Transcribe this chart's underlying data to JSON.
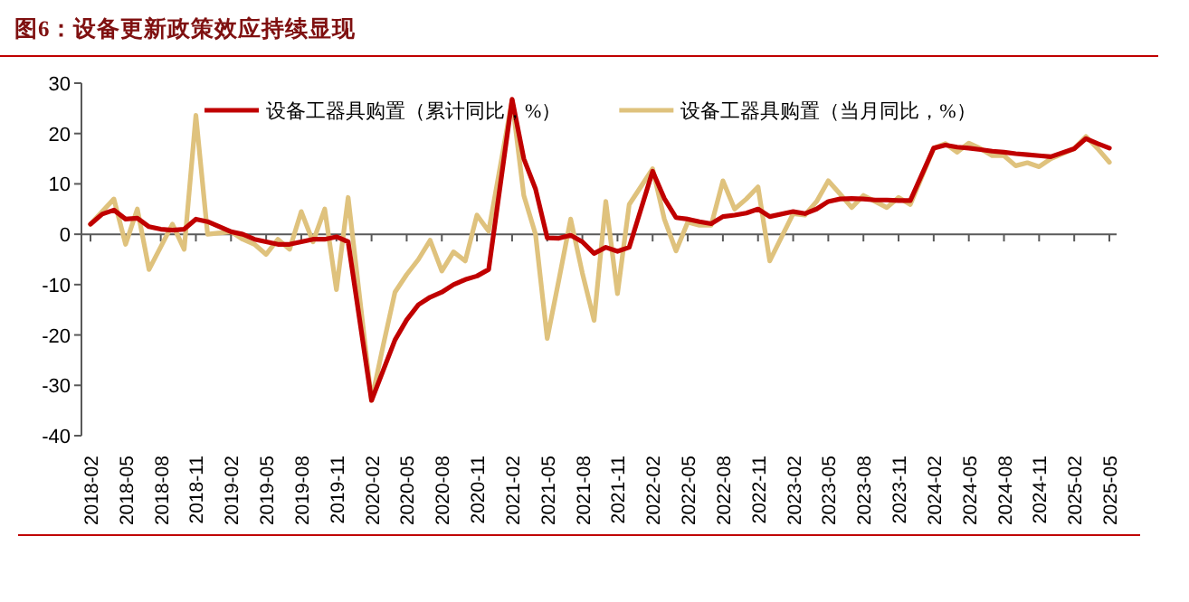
{
  "chart_data": {
    "type": "line",
    "title": "图6：设备更新政策效应持续显现",
    "x": [
      "2018-02",
      "2018-03",
      "2018-04",
      "2018-05",
      "2018-06",
      "2018-07",
      "2018-08",
      "2018-09",
      "2018-10",
      "2018-11",
      "2018-12",
      "2019-02",
      "2019-03",
      "2019-04",
      "2019-05",
      "2019-06",
      "2019-07",
      "2019-08",
      "2019-09",
      "2019-10",
      "2019-11",
      "2019-12",
      "2020-02",
      "2020-03",
      "2020-04",
      "2020-05",
      "2020-06",
      "2020-07",
      "2020-08",
      "2020-09",
      "2020-10",
      "2020-11",
      "2020-12",
      "2021-02",
      "2021-03",
      "2021-04",
      "2021-05",
      "2021-06",
      "2021-07",
      "2021-08",
      "2021-09",
      "2021-10",
      "2021-11",
      "2021-12",
      "2022-02",
      "2022-03",
      "2022-04",
      "2022-05",
      "2022-06",
      "2022-07",
      "2022-08",
      "2022-09",
      "2022-10",
      "2022-11",
      "2022-12",
      "2023-02",
      "2023-03",
      "2023-04",
      "2023-05",
      "2023-06",
      "2023-07",
      "2023-08",
      "2023-09",
      "2023-10",
      "2023-11",
      "2023-12",
      "2024-02",
      "2024-03",
      "2024-04",
      "2024-05",
      "2024-06",
      "2024-07",
      "2024-08",
      "2024-09",
      "2024-10",
      "2024-11",
      "2024-12",
      "2025-02",
      "2025-03",
      "2025-04",
      "2025-05"
    ],
    "series": [
      {
        "name": "设备工器具购置（累计同比，%）",
        "color": "#c00000",
        "values": [
          2,
          4,
          4.8,
          3,
          3.2,
          1.5,
          1,
          0.8,
          1,
          3,
          2.5,
          0.5,
          0,
          -1,
          -1.5,
          -2,
          -2,
          -1.5,
          -1,
          -1,
          -0.5,
          -1.5,
          -33,
          -27,
          -21,
          -17,
          -14,
          -12.5,
          -11.5,
          -10,
          -9,
          -8.3,
          -7,
          26.8,
          15,
          9,
          -0.7,
          -0.8,
          -0.2,
          -1.5,
          -3.8,
          -2.6,
          -3.4,
          -2.6,
          12.5,
          7.1,
          3.3,
          3,
          2.5,
          2.1,
          3.5,
          3.8,
          4.2,
          5,
          3.5,
          4.5,
          4.1,
          5,
          6.5,
          7,
          7.1,
          7,
          6.8,
          6.8,
          6.7,
          6.7,
          17.1,
          17.7,
          17.3,
          17.1,
          16.8,
          16.5,
          16.3,
          16,
          15.8,
          15.6,
          15.4,
          17,
          19,
          18,
          17.1
        ]
      },
      {
        "name": "设备工器具购置（当月同比，%）",
        "color": "#dfc27d",
        "values": [
          2,
          4.5,
          7,
          -2,
          5,
          -7,
          -2.5,
          2,
          -3,
          23.6,
          0,
          0.5,
          -1,
          -2,
          -4,
          -1,
          -3,
          4.5,
          -1.5,
          5,
          -11,
          7.3,
          -33,
          -22,
          -11.5,
          -8,
          -5,
          -1.2,
          -7.3,
          -3.5,
          -5.3,
          3.8,
          0.6,
          26.6,
          7.7,
          0,
          -20.7,
          -9,
          3,
          -7.7,
          -17.1,
          6.5,
          -11.8,
          5.9,
          13,
          3,
          -3.3,
          2.4,
          1.8,
          1.8,
          10.6,
          5,
          7,
          9.4,
          -5.3,
          4.1,
          3.8,
          6.5,
          10.6,
          8,
          5.3,
          7.7,
          6.5,
          5.3,
          7.3,
          5.9,
          17.1,
          18,
          16.3,
          18.1,
          17,
          15.6,
          15.6,
          13.6,
          14.2,
          13.4,
          15,
          17,
          19.4,
          17,
          14.3
        ]
      }
    ],
    "xlim": [
      "2018-02",
      "2025-05"
    ],
    "xticks": [
      "2018-02",
      "2018-05",
      "2018-08",
      "2018-11",
      "2019-02",
      "2019-05",
      "2019-08",
      "2019-11",
      "2020-02",
      "2020-05",
      "2020-08",
      "2020-11",
      "2021-02",
      "2021-05",
      "2021-08",
      "2021-11",
      "2022-02",
      "2022-05",
      "2022-08",
      "2022-11",
      "2023-02",
      "2023-05",
      "2023-08",
      "2023-11",
      "2024-02",
      "2024-05",
      "2024-08",
      "2024-11",
      "2025-02",
      "2025-05"
    ],
    "ylim": [
      -40,
      30
    ],
    "yticks": [
      -40,
      -30,
      -20,
      -10,
      0,
      10,
      20,
      30
    ],
    "legend": "top",
    "line_style": "solid"
  }
}
